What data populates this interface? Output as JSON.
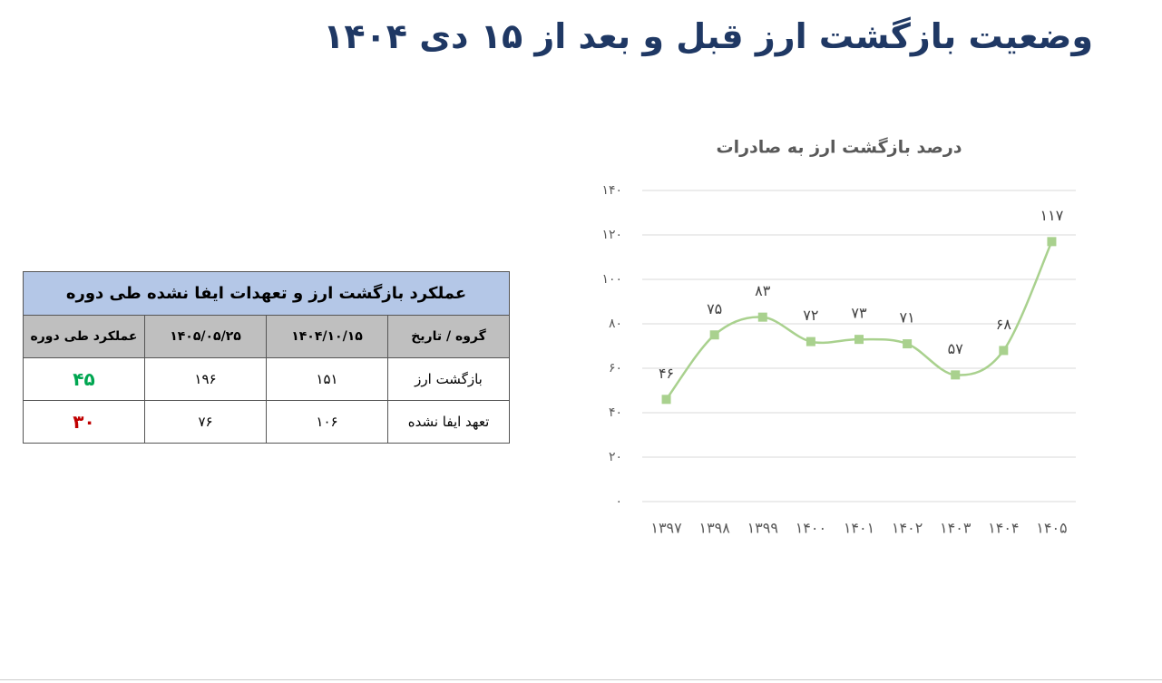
{
  "title": "وضعیت بازگشت ارز قبل و بعد از ۱۵ دی ۱۴۰۴",
  "table": {
    "title": "عملکرد بازگشت ارز و تعهدات ایفا نشده طی دوره",
    "header": [
      "گروه / تاریخ",
      "۱۴۰۴/۱۰/۱۵",
      "۱۴۰۵/۰۵/۲۵",
      "عملکرد طی دوره"
    ],
    "rows": [
      [
        "بازگشت ارز",
        "۱۵۱",
        "۱۹۶",
        "۴۵"
      ],
      [
        "تعهد ایفا نشده",
        "۱۰۶",
        "۷۶",
        "۳۰"
      ]
    ]
  },
  "chart_data": {
    "type": "line",
    "title": "درصد بازگشت ارز به صادرات",
    "categories": [
      "۱۳۹۷",
      "۱۳۹۸",
      "۱۳۹۹",
      "۱۴۰۰",
      "۱۴۰۱",
      "۱۴۰۲",
      "۱۴۰۳",
      "۱۴۰۴",
      "۱۴۰۵"
    ],
    "values": [
      46,
      75,
      83,
      72,
      73,
      71,
      57,
      68,
      117
    ],
    "value_labels": [
      "۴۶",
      "۷۵",
      "۸۳",
      "۷۲",
      "۷۳",
      "۷۱",
      "۵۷",
      "۶۸",
      "۱۱۷"
    ],
    "color": "#a9d18e",
    "smooth": true,
    "grid": true,
    "ylim": [
      0,
      140
    ],
    "yticks": [
      {
        "value": 0,
        "label": "۰"
      },
      {
        "value": 20,
        "label": "۲۰"
      },
      {
        "value": 40,
        "label": "۴۰"
      },
      {
        "value": 60,
        "label": "۶۰"
      },
      {
        "value": 80,
        "label": "۸۰"
      },
      {
        "value": 100,
        "label": "۱۰۰"
      },
      {
        "value": 120,
        "label": "۱۲۰"
      },
      {
        "value": 140,
        "label": "۱۴۰"
      }
    ]
  }
}
